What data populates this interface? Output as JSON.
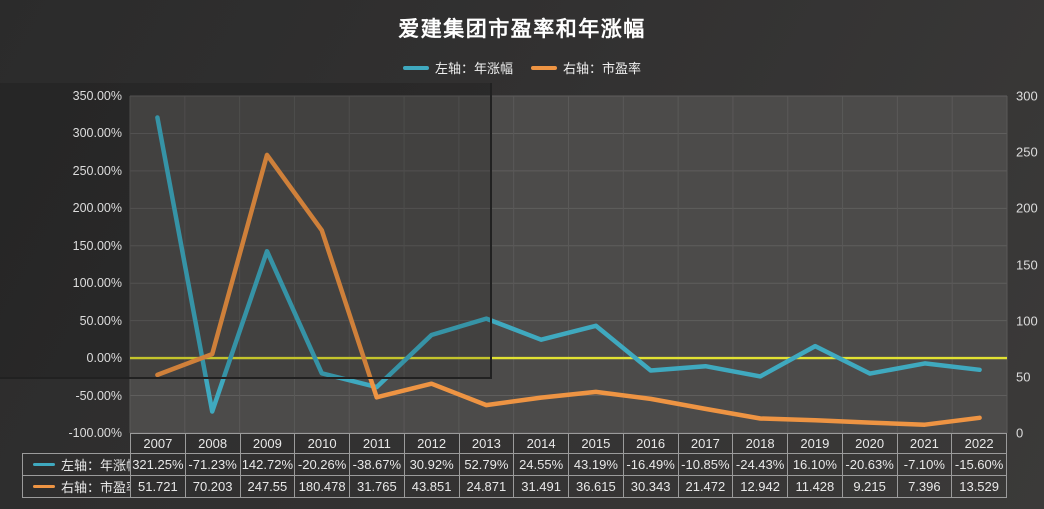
{
  "title": "爱建集团市盈率和年涨幅",
  "legend": [
    {
      "label": "左轴：年涨幅",
      "color": "#3fa9bf"
    },
    {
      "label": "右轴：市盈率",
      "color": "#ee9443"
    }
  ],
  "colors": {
    "background_dark": "#2b2b2b",
    "plot_background": "#4c4b4a",
    "gridline": "#5f5e5d",
    "zero_line": "#e2e233",
    "table_border": "#9b9b9b",
    "text": "#dcdcdc"
  },
  "chart_data": {
    "type": "line",
    "title": "爱建集团市盈率和年涨幅",
    "categories": [
      "2007",
      "2008",
      "2009",
      "2010",
      "2011",
      "2012",
      "2013",
      "2014",
      "2015",
      "2016",
      "2017",
      "2018",
      "2019",
      "2020",
      "2021",
      "2022"
    ],
    "series": [
      {
        "name": "左轴：年涨幅",
        "yaxis": "left",
        "color": "#3fa9bf",
        "values": [
          321.25,
          -71.23,
          142.72,
          -20.26,
          -38.67,
          30.92,
          52.79,
          24.55,
          43.19,
          -16.49,
          -10.85,
          -24.43,
          16.1,
          -20.63,
          -7.1,
          -15.6
        ],
        "labels": [
          "321.25%",
          "-71.23%",
          "142.72%",
          "-20.26%",
          "-38.67%",
          "30.92%",
          "52.79%",
          "24.55%",
          "43.19%",
          "-16.49%",
          "-10.85%",
          "-24.43%",
          "16.10%",
          "-20.63%",
          "-7.10%",
          "-15.60%"
        ]
      },
      {
        "name": "右轴：市盈率",
        "yaxis": "right",
        "color": "#ee9443",
        "values": [
          51.721,
          70.203,
          247.55,
          180.478,
          31.765,
          43.851,
          24.871,
          31.491,
          36.615,
          30.343,
          21.472,
          12.942,
          11.428,
          9.215,
          7.396,
          13.529
        ],
        "labels": [
          "51.721",
          "70.203",
          "247.55",
          "180.478",
          "31.765",
          "43.851",
          "24.871",
          "31.491",
          "36.615",
          "30.343",
          "21.472",
          "12.942",
          "11.428",
          "9.215",
          "7.396",
          "13.529"
        ]
      }
    ],
    "left_axis_ticks": [
      "350.00%",
      "300.00%",
      "250.00%",
      "200.00%",
      "150.00%",
      "100.00%",
      "50.00%",
      "0.00%",
      "-50.00%",
      "-100.00%"
    ],
    "right_axis_ticks": [
      "300",
      "250",
      "200",
      "150",
      "100",
      "50",
      "0"
    ],
    "left_axis_range": [
      -100,
      350
    ],
    "right_axis_range": [
      0,
      300
    ],
    "zero_line": {
      "value": 0,
      "axis": "left",
      "color": "#e2e233"
    },
    "grid": true,
    "legend_position": "top"
  }
}
